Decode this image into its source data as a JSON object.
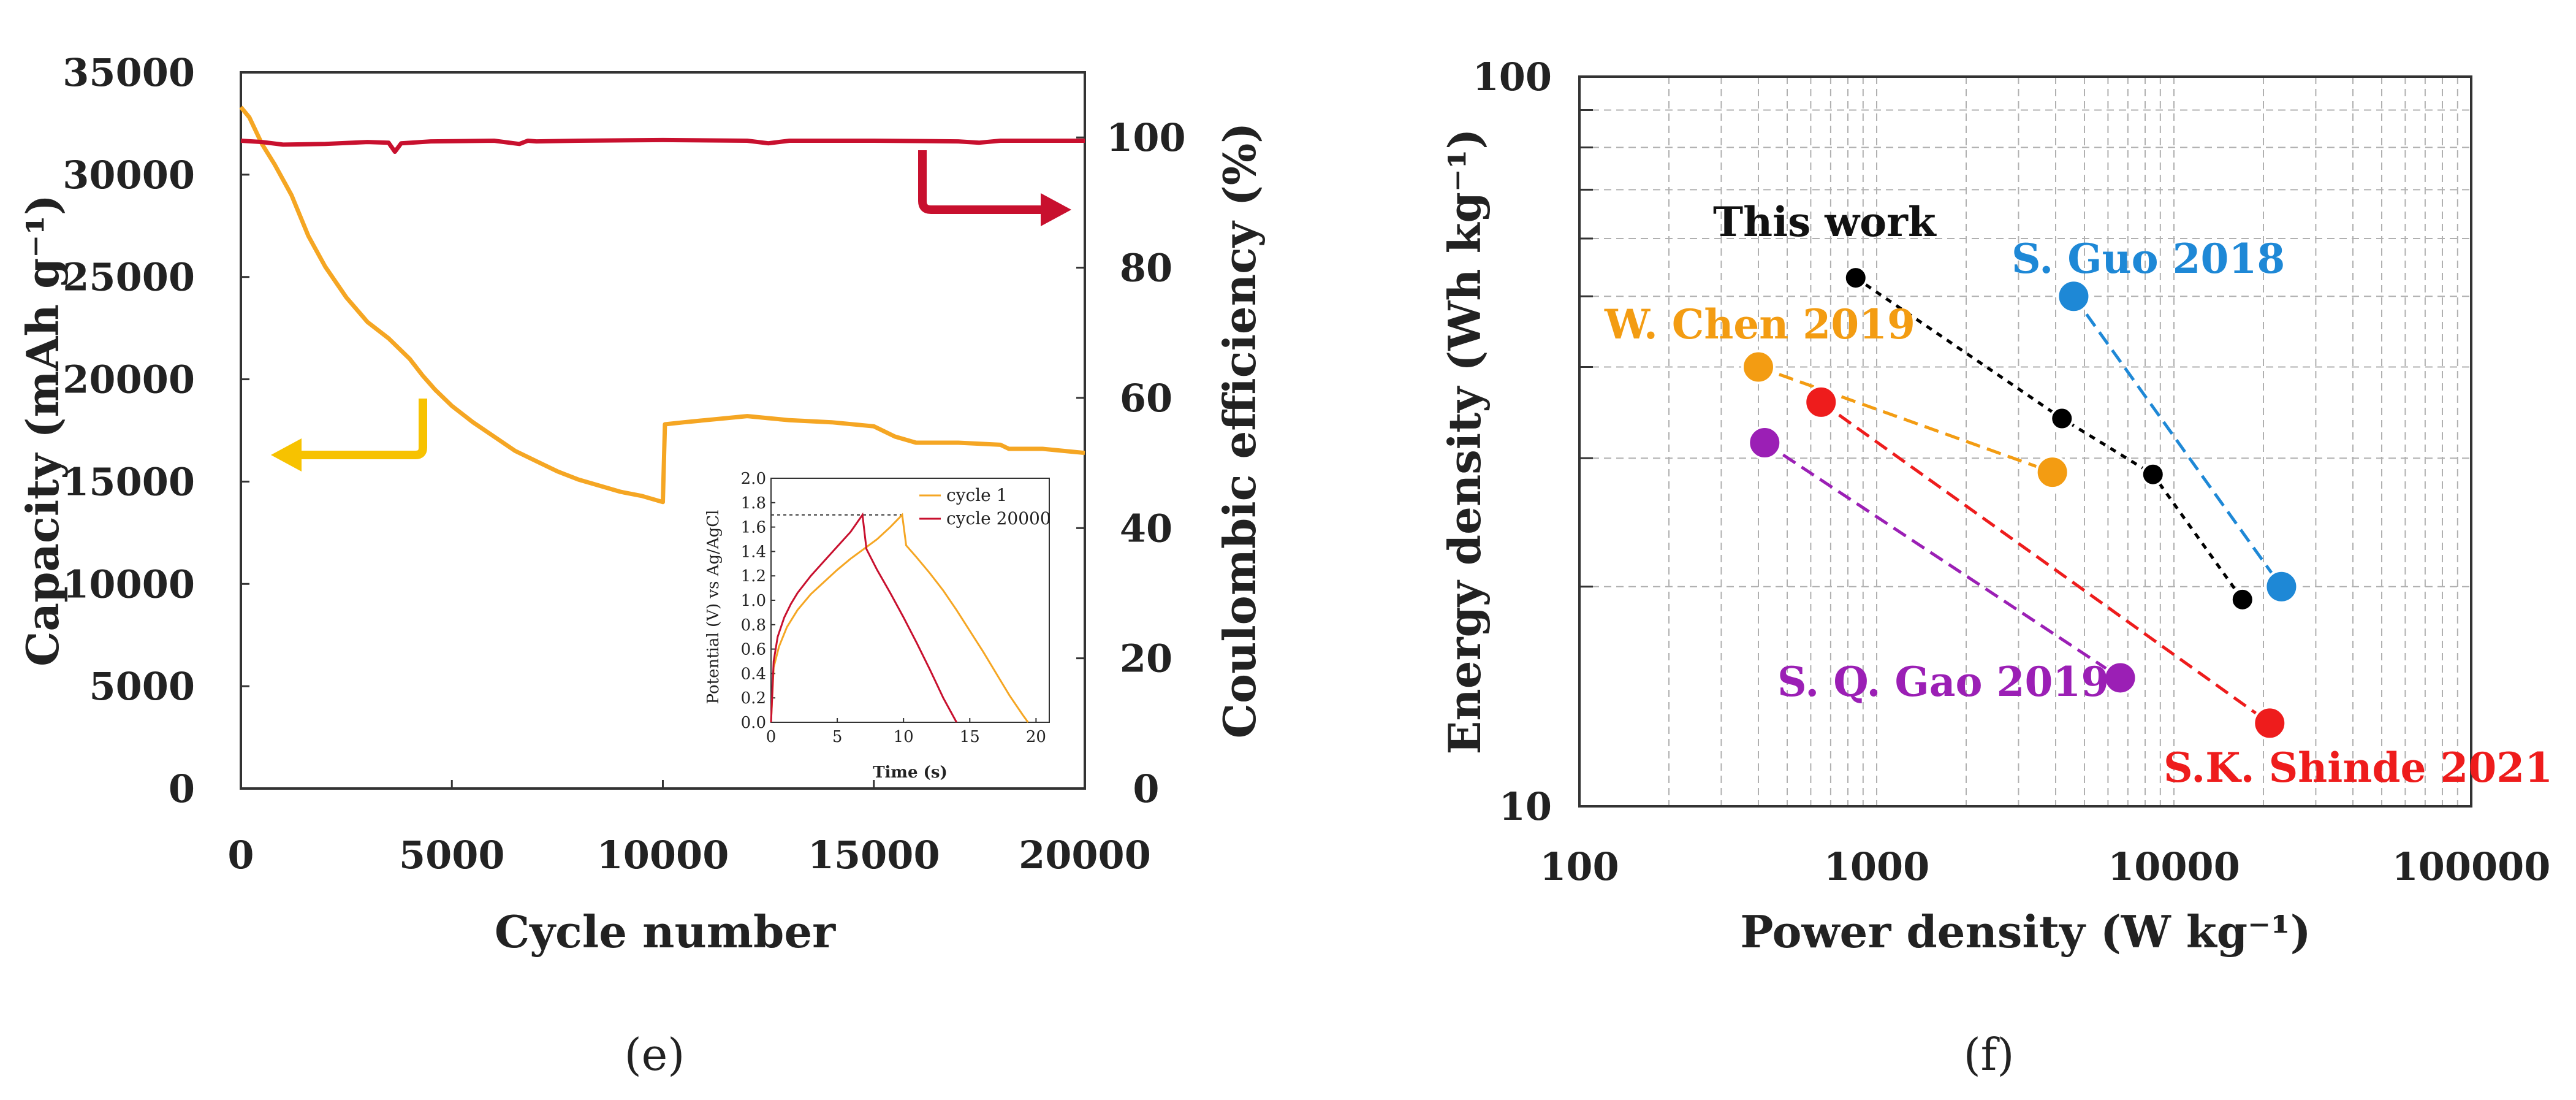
{
  "chart_data": [
    {
      "panel": "e",
      "panel_label": "(e)",
      "type": "line",
      "xlabel": "Cycle number",
      "ylabel_left": "Capacity (mAh g⁻¹)",
      "ylabel_right": "Coulombic efficiency (%)",
      "xlim": [
        0,
        20000
      ],
      "ylim_left": [
        0,
        35000
      ],
      "ylim_right": [
        0,
        110
      ],
      "x_ticks": [
        "0",
        "5000",
        "10000",
        "15000",
        "20000"
      ],
      "y_left_ticks": [
        "0",
        "5000",
        "10000",
        "15000",
        "20000",
        "25000",
        "30000",
        "35000"
      ],
      "y_right_ticks": [
        "0",
        "20",
        "40",
        "60",
        "80",
        "100"
      ],
      "series": [
        {
          "name": "Capacity",
          "axis": "left",
          "color": "#f5a623",
          "x": [
            0,
            200,
            500,
            800,
            1200,
            1600,
            2000,
            2500,
            3000,
            3500,
            4000,
            4300,
            4600,
            5000,
            5500,
            6000,
            6500,
            7000,
            7500,
            8000,
            8500,
            9000,
            9500,
            10000,
            10050,
            10500,
            11000,
            11500,
            12000,
            12500,
            13000,
            14000,
            15000,
            15500,
            16000,
            17000,
            18000,
            18200,
            19000,
            19500,
            20000
          ],
          "values": [
            33300,
            32800,
            31500,
            30500,
            29000,
            27000,
            25500,
            24000,
            22800,
            22000,
            21000,
            20200,
            19500,
            18700,
            17900,
            17200,
            16500,
            16000,
            15500,
            15100,
            14800,
            14500,
            14300,
            14000,
            17800,
            17900,
            18000,
            18100,
            18200,
            18100,
            18000,
            17900,
            17700,
            17200,
            16900,
            16900,
            16800,
            16600,
            16600,
            16500,
            16400
          ]
        },
        {
          "name": "Coulombic efficiency",
          "axis": "right",
          "color": "#c8102e",
          "x": [
            0,
            500,
            1000,
            2000,
            3000,
            3500,
            3650,
            3800,
            4500,
            6000,
            6600,
            6800,
            7000,
            8000,
            10000,
            12000,
            12500,
            13000,
            15000,
            17000,
            17500,
            18000,
            20000
          ],
          "values": [
            99.5,
            99.3,
            98.9,
            99.0,
            99.3,
            99.2,
            97.8,
            99.1,
            99.4,
            99.5,
            99.0,
            99.5,
            99.4,
            99.5,
            99.6,
            99.5,
            99.1,
            99.5,
            99.5,
            99.4,
            99.2,
            99.5,
            99.5
          ]
        }
      ],
      "inset": {
        "type": "line",
        "xlabel": "Time (s)",
        "ylabel": "Potential (V) vs Ag/AgCl",
        "xlim": [
          0,
          21
        ],
        "ylim": [
          0,
          2.0
        ],
        "x_ticks": [
          "0",
          "5",
          "10",
          "15",
          "20"
        ],
        "y_ticks": [
          "0.0",
          "0.2",
          "0.4",
          "0.6",
          "0.8",
          "1.0",
          "1.2",
          "1.4",
          "1.6",
          "1.8",
          "2.0"
        ],
        "series": [
          {
            "name": "cycle 1",
            "color": "#f5a623",
            "x": [
              0,
              0.2,
              0.6,
              1.2,
              2,
              3,
              4,
              5,
              6,
              7,
              8,
              9,
              9.9,
              10.2,
              11,
              12,
              13,
              14,
              15,
              16,
              17,
              18,
              19,
              19.4
            ],
            "values": [
              0.0,
              0.45,
              0.62,
              0.78,
              0.92,
              1.05,
              1.15,
              1.25,
              1.34,
              1.42,
              1.5,
              1.6,
              1.7,
              1.45,
              1.35,
              1.22,
              1.08,
              0.92,
              0.75,
              0.58,
              0.4,
              0.22,
              0.06,
              0.0
            ]
          },
          {
            "name": "cycle 20000",
            "color": "#c8102e",
            "x": [
              0,
              0.2,
              0.5,
              1,
              1.5,
              2,
              3,
              4,
              5,
              6,
              6.9,
              7.2,
              8,
              9,
              10,
              11,
              12,
              13,
              14
            ],
            "values": [
              0.0,
              0.5,
              0.7,
              0.86,
              0.97,
              1.06,
              1.2,
              1.32,
              1.44,
              1.56,
              1.7,
              1.42,
              1.25,
              1.06,
              0.86,
              0.65,
              0.43,
              0.2,
              0.0
            ]
          }
        ],
        "reference_line_value": 1.7
      },
      "arrows": [
        "left (capacity axis)",
        "right (coulombic efficiency axis)"
      ]
    },
    {
      "panel": "f",
      "panel_label": "(f)",
      "type": "scatter",
      "xscale": "log",
      "yscale": "log",
      "xlabel": "Power density (W kg⁻¹)",
      "ylabel": "Energy density (Wh kg⁻¹)",
      "xlim": [
        100,
        100000
      ],
      "ylim": [
        10,
        100
      ],
      "x_ticks": [
        "100",
        "1000",
        "10000",
        "100000"
      ],
      "y_ticks": [
        "10",
        "100"
      ],
      "series": [
        {
          "name": "This work",
          "color": "#000000",
          "x": [
            850,
            4200,
            8500,
            17000
          ],
          "values": [
            53,
            34,
            28.5,
            19.2
          ]
        },
        {
          "name": "S. Guo 2018",
          "color": "#1e88d6",
          "x": [
            4600,
            23000
          ],
          "values": [
            50,
            20
          ]
        },
        {
          "name": "W. Chen 2019",
          "color": "#f39c12",
          "x": [
            400,
            3900
          ],
          "values": [
            40,
            28.7
          ]
        },
        {
          "name": "S.K. Shinde 2021",
          "color": "#ee1c1c",
          "x": [
            650,
            21000
          ],
          "values": [
            35.8,
            13
          ]
        },
        {
          "name": "S. Q. Gao 2019",
          "color": "#9b1fb5",
          "x": [
            420,
            6600
          ],
          "values": [
            31.5,
            15
          ]
        }
      ]
    }
  ]
}
